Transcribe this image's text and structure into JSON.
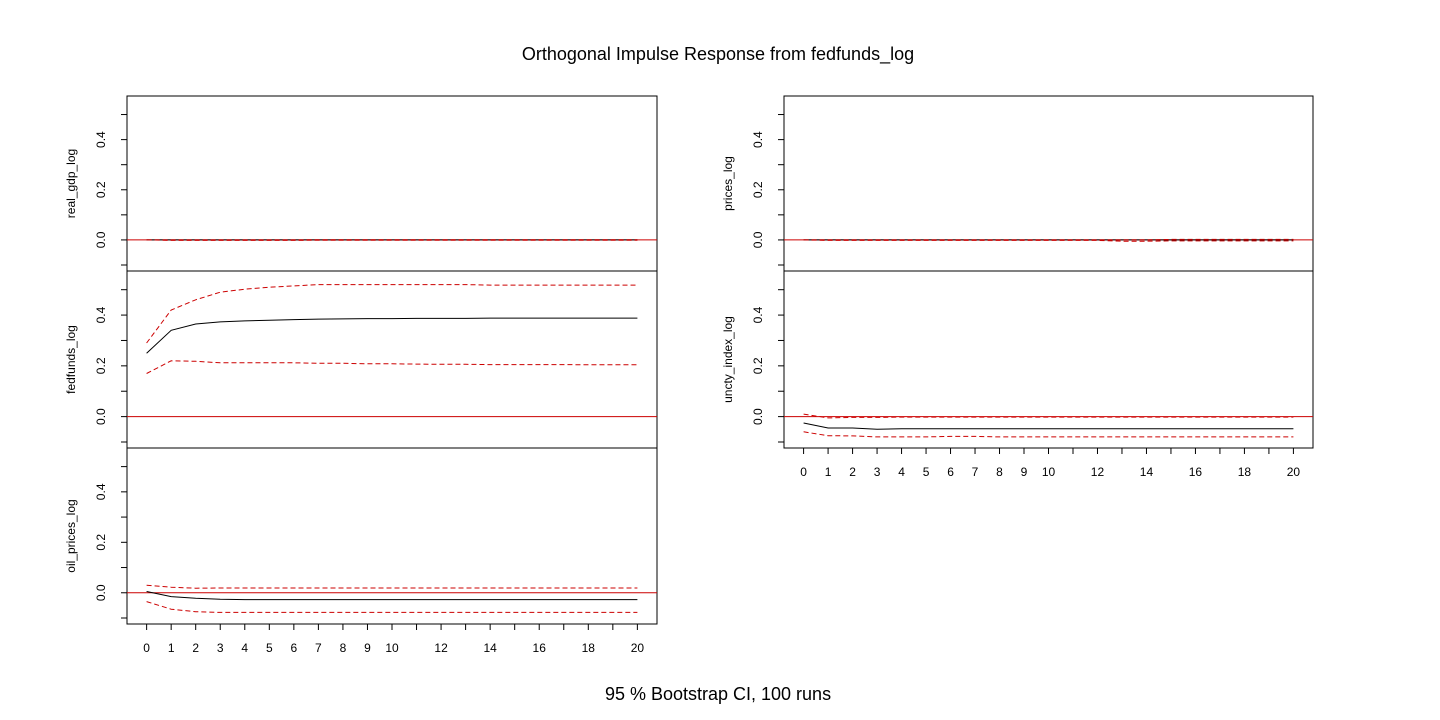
{
  "main_title": "Orthogonal Impulse Response from fedfunds_log",
  "footer": "95 % Bootstrap CI,  100 runs",
  "colors": {
    "response": "#000000",
    "ci": "#cc0000",
    "zero_line": "#cc0000"
  },
  "chart_data": [
    {
      "type": "line",
      "ylabel": "real_gdp_log",
      "ylim": [
        -0.1,
        0.55
      ],
      "yticks": [
        "0.0",
        "0.2",
        "0.4"
      ],
      "x": [
        0,
        1,
        2,
        3,
        4,
        5,
        6,
        7,
        8,
        9,
        10,
        11,
        12,
        13,
        14,
        15,
        16,
        17,
        18,
        19,
        20
      ],
      "series": [
        {
          "role": "response",
          "values": [
            0,
            0,
            0,
            0,
            0,
            0,
            0,
            0,
            0,
            0,
            0,
            0,
            0,
            0,
            0,
            0,
            0,
            0,
            0,
            0,
            0
          ]
        },
        {
          "role": "upper",
          "values": [
            0,
            0,
            0,
            0,
            0,
            0,
            0,
            0.001,
            0.001,
            0.001,
            0.001,
            0.001,
            0.001,
            0.001,
            0.001,
            0.001,
            0.001,
            0.001,
            0.001,
            0.001,
            0.001
          ]
        },
        {
          "role": "lower",
          "values": [
            0,
            -0.002,
            -0.002,
            -0.002,
            -0.002,
            -0.002,
            -0.002,
            -0.001,
            -0.001,
            -0.001,
            -0.001,
            -0.001,
            -0.001,
            -0.001,
            -0.001,
            -0.001,
            -0.001,
            -0.001,
            -0.001,
            -0.001,
            -0.001
          ]
        }
      ]
    },
    {
      "type": "line",
      "ylabel": "fedfunds_log",
      "ylim": [
        -0.1,
        0.55
      ],
      "yticks": [
        "0.0",
        "0.2",
        "0.4"
      ],
      "x": [
        0,
        1,
        2,
        3,
        4,
        5,
        6,
        7,
        8,
        9,
        10,
        11,
        12,
        13,
        14,
        15,
        16,
        17,
        18,
        19,
        20
      ],
      "series": [
        {
          "role": "response",
          "values": [
            0.25,
            0.34,
            0.365,
            0.373,
            0.377,
            0.38,
            0.382,
            0.384,
            0.385,
            0.386,
            0.386,
            0.387,
            0.387,
            0.387,
            0.388,
            0.388,
            0.388,
            0.388,
            0.388,
            0.388,
            0.388
          ]
        },
        {
          "role": "upper",
          "values": [
            0.29,
            0.42,
            0.46,
            0.49,
            0.502,
            0.51,
            0.515,
            0.52,
            0.52,
            0.52,
            0.52,
            0.52,
            0.52,
            0.52,
            0.518,
            0.518,
            0.518,
            0.518,
            0.518,
            0.518,
            0.518
          ]
        },
        {
          "role": "lower",
          "values": [
            0.17,
            0.22,
            0.218,
            0.212,
            0.212,
            0.212,
            0.212,
            0.21,
            0.21,
            0.208,
            0.208,
            0.207,
            0.206,
            0.206,
            0.205,
            0.205,
            0.205,
            0.205,
            0.204,
            0.204,
            0.204
          ]
        }
      ]
    },
    {
      "type": "line",
      "ylabel": "oil_prices_log",
      "ylim": [
        -0.1,
        0.55
      ],
      "yticks": [
        "0.0",
        "0.2",
        "0.4"
      ],
      "xlabels": [
        "0",
        "1",
        "2",
        "3",
        "4",
        "5",
        "6",
        "7",
        "8",
        "9",
        "10",
        "12",
        "14",
        "16",
        "18",
        "20"
      ],
      "x": [
        0,
        1,
        2,
        3,
        4,
        5,
        6,
        7,
        8,
        9,
        10,
        11,
        12,
        13,
        14,
        15,
        16,
        17,
        18,
        19,
        20
      ],
      "series": [
        {
          "role": "response",
          "values": [
            0.005,
            -0.015,
            -0.022,
            -0.026,
            -0.027,
            -0.027,
            -0.027,
            -0.027,
            -0.027,
            -0.027,
            -0.027,
            -0.027,
            -0.027,
            -0.027,
            -0.027,
            -0.027,
            -0.027,
            -0.027,
            -0.027,
            -0.027,
            -0.027
          ]
        },
        {
          "role": "upper",
          "values": [
            0.03,
            0.022,
            0.018,
            0.019,
            0.019,
            0.019,
            0.019,
            0.019,
            0.019,
            0.019,
            0.019,
            0.019,
            0.019,
            0.019,
            0.019,
            0.019,
            0.019,
            0.019,
            0.019,
            0.019,
            0.019
          ]
        },
        {
          "role": "lower",
          "values": [
            -0.035,
            -0.065,
            -0.075,
            -0.078,
            -0.078,
            -0.078,
            -0.078,
            -0.078,
            -0.078,
            -0.078,
            -0.078,
            -0.078,
            -0.078,
            -0.078,
            -0.078,
            -0.078,
            -0.078,
            -0.078,
            -0.078,
            -0.078,
            -0.078
          ]
        }
      ]
    },
    {
      "type": "line",
      "ylabel": "prices_log",
      "ylim": [
        -0.1,
        0.55
      ],
      "yticks": [
        "0.0",
        "0.2",
        "0.4"
      ],
      "x": [
        0,
        1,
        2,
        3,
        4,
        5,
        6,
        7,
        8,
        9,
        10,
        11,
        12,
        13,
        14,
        15,
        16,
        17,
        18,
        19,
        20
      ],
      "series": [
        {
          "role": "response",
          "values": [
            0,
            0,
            0,
            0,
            0,
            0,
            0,
            0,
            0,
            0,
            0,
            0,
            0,
            0,
            0,
            0,
            0,
            0,
            0,
            0,
            0
          ]
        },
        {
          "role": "upper",
          "values": [
            0,
            0,
            0,
            0,
            0,
            0,
            0,
            0,
            0,
            0,
            0,
            0,
            0,
            0,
            0,
            0.002,
            0.002,
            0.002,
            0.002,
            0.002,
            0.002
          ]
        },
        {
          "role": "lower",
          "values": [
            0,
            -0.002,
            -0.002,
            -0.002,
            -0.002,
            -0.002,
            -0.002,
            -0.002,
            -0.002,
            -0.002,
            -0.002,
            -0.002,
            -0.002,
            -0.005,
            -0.005,
            -0.004,
            -0.004,
            -0.004,
            -0.004,
            -0.004,
            -0.004
          ]
        }
      ]
    },
    {
      "type": "line",
      "ylabel": "uncty_index_log",
      "ylim": [
        -0.1,
        0.55
      ],
      "yticks": [
        "0.0",
        "0.2",
        "0.4"
      ],
      "xlabels": [
        "0",
        "1",
        "2",
        "3",
        "4",
        "5",
        "6",
        "7",
        "8",
        "9",
        "10",
        "12",
        "14",
        "16",
        "18",
        "20"
      ],
      "x": [
        0,
        1,
        2,
        3,
        4,
        5,
        6,
        7,
        8,
        9,
        10,
        11,
        12,
        13,
        14,
        15,
        16,
        17,
        18,
        19,
        20
      ],
      "series": [
        {
          "role": "response",
          "values": [
            -0.025,
            -0.045,
            -0.045,
            -0.05,
            -0.048,
            -0.048,
            -0.048,
            -0.048,
            -0.048,
            -0.048,
            -0.048,
            -0.048,
            -0.048,
            -0.048,
            -0.048,
            -0.048,
            -0.048,
            -0.048,
            -0.048,
            -0.048,
            -0.048
          ]
        },
        {
          "role": "upper",
          "values": [
            0.01,
            -0.005,
            -0.003,
            -0.003,
            -0.002,
            -0.002,
            -0.002,
            -0.002,
            -0.002,
            -0.002,
            -0.002,
            -0.002,
            -0.002,
            -0.002,
            -0.002,
            -0.002,
            -0.002,
            -0.002,
            -0.002,
            -0.002,
            -0.002
          ]
        },
        {
          "role": "lower",
          "values": [
            -0.06,
            -0.075,
            -0.076,
            -0.08,
            -0.08,
            -0.08,
            -0.078,
            -0.078,
            -0.08,
            -0.08,
            -0.08,
            -0.08,
            -0.08,
            -0.08,
            -0.08,
            -0.08,
            -0.08,
            -0.08,
            -0.08,
            -0.08,
            -0.08
          ]
        }
      ]
    }
  ]
}
